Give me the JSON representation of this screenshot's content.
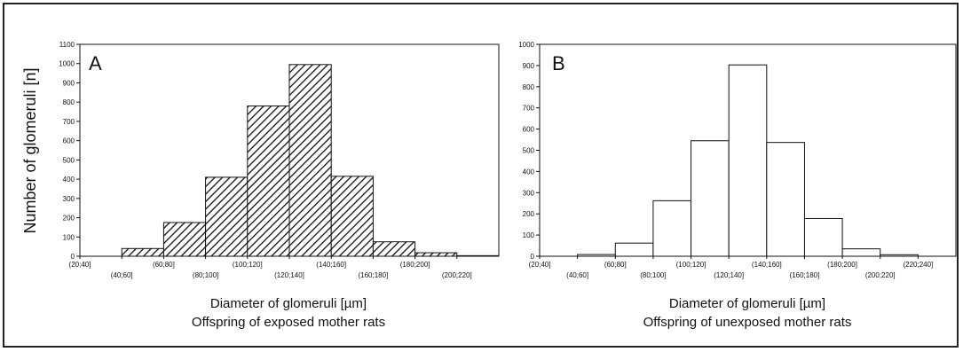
{
  "y_axis_label": "Number of glomeruli [n]",
  "chart_data": [
    {
      "type": "bar",
      "panel_label": "A",
      "fill": "hatched",
      "categories": [
        "(20;40]",
        "(40;60]",
        "(60;80]",
        "(80;100]",
        "(100;120]",
        "(120;140]",
        "(140;160]",
        "(160;180]",
        "(180;200]",
        "(200;220]"
      ],
      "values": [
        0,
        40,
        175,
        410,
        780,
        995,
        415,
        75,
        18,
        3
      ],
      "ylim": [
        0,
        1100
      ],
      "yticks": [
        0,
        100,
        200,
        300,
        400,
        500,
        600,
        700,
        800,
        900,
        1000,
        1100
      ],
      "xlabel": "Diameter of glomeruli [µm]",
      "subtitle": "Offspring of exposed mother rats",
      "ylabel": "Number of glomeruli [n]"
    },
    {
      "type": "bar",
      "panel_label": "B",
      "fill": "white",
      "categories": [
        "(20;40]",
        "(40;60]",
        "(60;80]",
        "(80;100]",
        "(100;120]",
        "(120;140]",
        "(140;160]",
        "(160;180]",
        "(180;200]",
        "(200;220]",
        "(220;240]"
      ],
      "values": [
        0,
        8,
        62,
        262,
        545,
        903,
        537,
        178,
        35,
        7,
        0
      ],
      "ylim": [
        0,
        1000
      ],
      "yticks": [
        0,
        100,
        200,
        300,
        400,
        500,
        600,
        700,
        800,
        900,
        1000
      ],
      "xlabel": "Diameter of glomeruli [µm]",
      "subtitle": "Offspring of unexposed mother rats",
      "ylabel": ""
    }
  ]
}
